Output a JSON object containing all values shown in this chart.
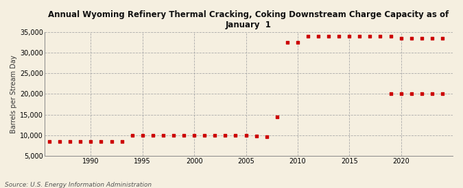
{
  "title": "Annual Wyoming Refinery Thermal Cracking, Coking Downstream Charge Capacity as of\nJanuary  1",
  "ylabel": "Barrels per Stream Day",
  "source": "Source: U.S. Energy Information Administration",
  "background_color": "#f5efe0",
  "series1": {
    "years": [
      1986,
      1987,
      1988,
      1989,
      1990,
      1991,
      1992,
      1993,
      1994,
      1995,
      1996,
      1997,
      1998,
      1999,
      2000,
      2001,
      2002,
      2003,
      2004,
      2005,
      2006,
      2007,
      2008,
      2009,
      2010,
      2011,
      2012,
      2013,
      2014,
      2015,
      2016,
      2017,
      2018,
      2019,
      2020,
      2021,
      2022,
      2023,
      2024
    ],
    "values": [
      8500,
      8500,
      8500,
      8500,
      8500,
      8500,
      8500,
      8500,
      10000,
      10000,
      10000,
      10000,
      10000,
      10000,
      10000,
      10000,
      10000,
      10000,
      10000,
      10000,
      9800,
      9600,
      14500,
      32500,
      32500,
      34000,
      34000,
      34000,
      34000,
      34000,
      34000,
      34000,
      34000,
      34000,
      33500,
      33500,
      33500,
      33500,
      33500
    ],
    "color": "#cc0000"
  },
  "series2": {
    "years": [
      2019,
      2020,
      2021,
      2022,
      2023,
      2024
    ],
    "values": [
      20000,
      20000,
      20000,
      20000,
      20000,
      20000
    ],
    "color": "#cc0000"
  },
  "xlim": [
    1985.5,
    2025
  ],
  "ylim": [
    5000,
    35000
  ],
  "yticks": [
    5000,
    10000,
    15000,
    20000,
    25000,
    30000,
    35000
  ],
  "xticks": [
    1990,
    1995,
    2000,
    2005,
    2010,
    2015,
    2020
  ],
  "grid_color": "#aaaaaa",
  "title_fontsize": 8.5,
  "label_fontsize": 7,
  "tick_fontsize": 7,
  "source_fontsize": 6.5
}
